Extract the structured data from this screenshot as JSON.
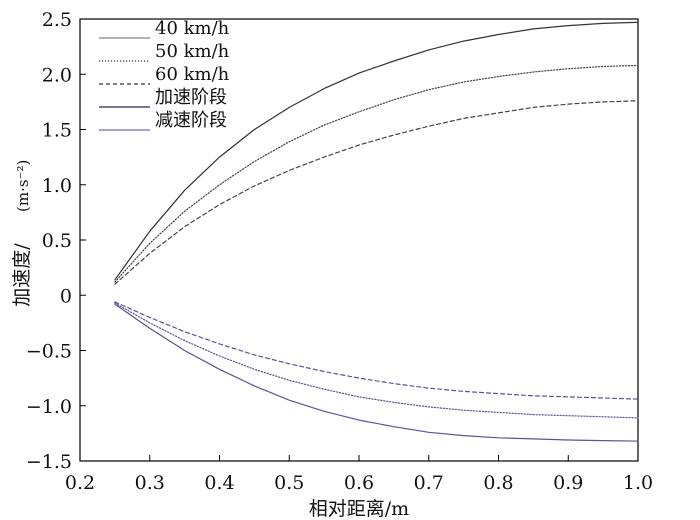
{
  "chart_data": {
    "type": "line",
    "title": "",
    "xlabel": "相对距离/m",
    "ylabel_main": "加速度/",
    "ylabel_unit": "(m·s⁻²)",
    "xlim": [
      0.2,
      1.0
    ],
    "ylim": [
      -1.5,
      2.5
    ],
    "xticks": [
      0.2,
      0.3,
      0.4,
      0.5,
      0.6,
      0.7,
      0.8,
      0.9,
      1.0
    ],
    "xtick_labels": [
      "0.2",
      "0.3",
      "0.4",
      "0.5",
      "0.6",
      "0.7",
      "0.8",
      "0.9",
      "1.0"
    ],
    "yticks": [
      -1.5,
      -1.0,
      -0.5,
      0,
      0.5,
      1.0,
      1.5,
      2.0,
      2.5
    ],
    "ytick_labels": [
      "−1.5",
      "−1.0",
      "−0.5",
      "0",
      "0.5",
      "1.0",
      "1.5",
      "2.0",
      "2.5"
    ],
    "grid": false,
    "legend_position": "top-left",
    "legend": [
      {
        "label": "40 km/h",
        "color": "#9a9a9a",
        "dash": "solid"
      },
      {
        "label": "50 km/h",
        "color": "#555555",
        "dash": "dotted"
      },
      {
        "label": "60 km/h",
        "color": "#555555",
        "dash": "dashed"
      },
      {
        "label": "加速阶段",
        "color": "#4a4a78",
        "dash": "solid"
      },
      {
        "label": "减速阶段",
        "color": "#8a84c4",
        "dash": "solid"
      }
    ],
    "x": [
      0.25,
      0.3,
      0.35,
      0.4,
      0.45,
      0.5,
      0.55,
      0.6,
      0.65,
      0.7,
      0.75,
      0.8,
      0.85,
      0.9,
      0.95,
      1.0
    ],
    "series": [
      {
        "speed": "40 km/h",
        "phase": "加速阶段",
        "color": "#333333",
        "dash": "solid",
        "values": [
          0.14,
          0.58,
          0.95,
          1.25,
          1.5,
          1.7,
          1.87,
          2.01,
          2.12,
          2.22,
          2.3,
          2.36,
          2.41,
          2.44,
          2.46,
          2.47
        ]
      },
      {
        "speed": "50 km/h",
        "phase": "加速阶段",
        "color": "#444444",
        "dash": "dotted",
        "values": [
          0.12,
          0.47,
          0.76,
          1.0,
          1.21,
          1.39,
          1.54,
          1.66,
          1.77,
          1.86,
          1.93,
          1.98,
          2.02,
          2.05,
          2.07,
          2.08
        ]
      },
      {
        "speed": "60 km/h",
        "phase": "加速阶段",
        "color": "#444444",
        "dash": "dashed",
        "values": [
          0.1,
          0.38,
          0.62,
          0.82,
          0.99,
          1.13,
          1.25,
          1.36,
          1.45,
          1.53,
          1.6,
          1.65,
          1.7,
          1.73,
          1.75,
          1.76
        ]
      },
      {
        "speed": "40 km/h",
        "phase": "减速阶段",
        "color": "#5a5494",
        "dash": "solid",
        "values": [
          -0.08,
          -0.3,
          -0.5,
          -0.67,
          -0.82,
          -0.95,
          -1.05,
          -1.13,
          -1.19,
          -1.24,
          -1.27,
          -1.29,
          -1.3,
          -1.31,
          -1.315,
          -1.32
        ]
      },
      {
        "speed": "50 km/h",
        "phase": "减速阶段",
        "color": "#5a5494",
        "dash": "dotted",
        "values": [
          -0.07,
          -0.25,
          -0.41,
          -0.55,
          -0.67,
          -0.77,
          -0.85,
          -0.92,
          -0.97,
          -1.01,
          -1.04,
          -1.06,
          -1.08,
          -1.09,
          -1.1,
          -1.11
        ]
      },
      {
        "speed": "60 km/h",
        "phase": "减速阶段",
        "color": "#5a5494",
        "dash": "dashed",
        "values": [
          -0.06,
          -0.2,
          -0.33,
          -0.44,
          -0.54,
          -0.62,
          -0.69,
          -0.75,
          -0.8,
          -0.84,
          -0.87,
          -0.89,
          -0.91,
          -0.92,
          -0.93,
          -0.94
        ]
      }
    ]
  }
}
